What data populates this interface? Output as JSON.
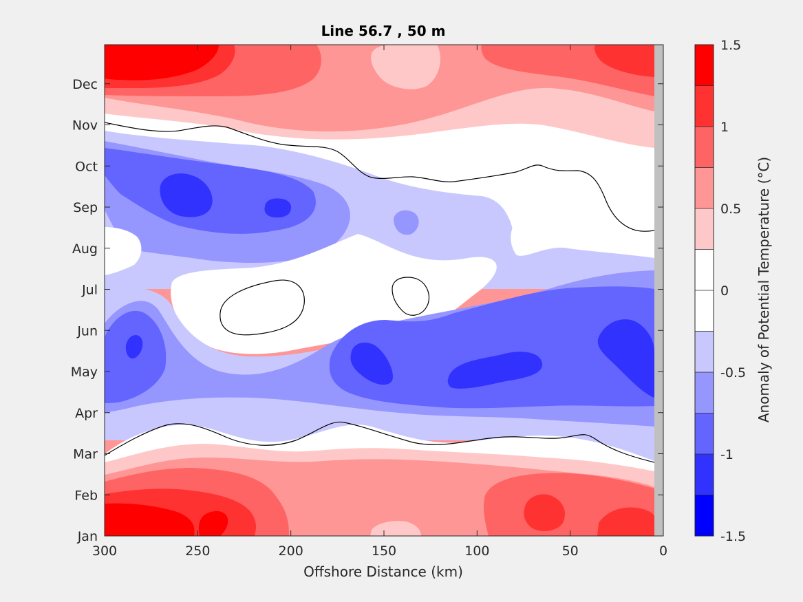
{
  "chart_data": {
    "type": "heatmap",
    "subtype": "filled-contour",
    "title": "Line 56.7 , 50 m",
    "xlabel": "Offshore Distance (km)",
    "ylabel": "",
    "xlim": [
      300,
      0
    ],
    "x_reversed": true,
    "x_ticks": [
      300,
      250,
      200,
      150,
      100,
      50,
      0
    ],
    "y_ticks": [
      "Jan",
      "Feb",
      "Mar",
      "Apr",
      "May",
      "Jun",
      "Jul",
      "Aug",
      "Sep",
      "Oct",
      "Nov",
      "Dec"
    ],
    "grid": false,
    "legend": "none",
    "colorbar": {
      "label": "Anomaly of Potential Temperature (°C)",
      "range": [
        -1.5,
        1.5
      ],
      "tick_values": [
        -1.5,
        -1,
        -0.5,
        0,
        0.5,
        1,
        1.5
      ],
      "tick_labels": [
        "-1.5",
        "-1",
        "-0.5",
        "0",
        "0.5",
        "1",
        "1.5"
      ],
      "levels": [
        -1.5,
        -1.25,
        -1,
        -0.75,
        -0.5,
        -0.25,
        0,
        0.25,
        0.5,
        0.75,
        1,
        1.25,
        1.5
      ],
      "colors": [
        "#0000ff",
        "#3232ff",
        "#6464ff",
        "#9696ff",
        "#c8c8ff",
        "#ffffff",
        "#ffffff",
        "#ffc8c8",
        "#ff9696",
        "#ff6464",
        "#ff3232",
        "#ff0000"
      ],
      "position": "right"
    },
    "zero_contour": "black line",
    "land_mask_color": "#c0c0c0"
  }
}
